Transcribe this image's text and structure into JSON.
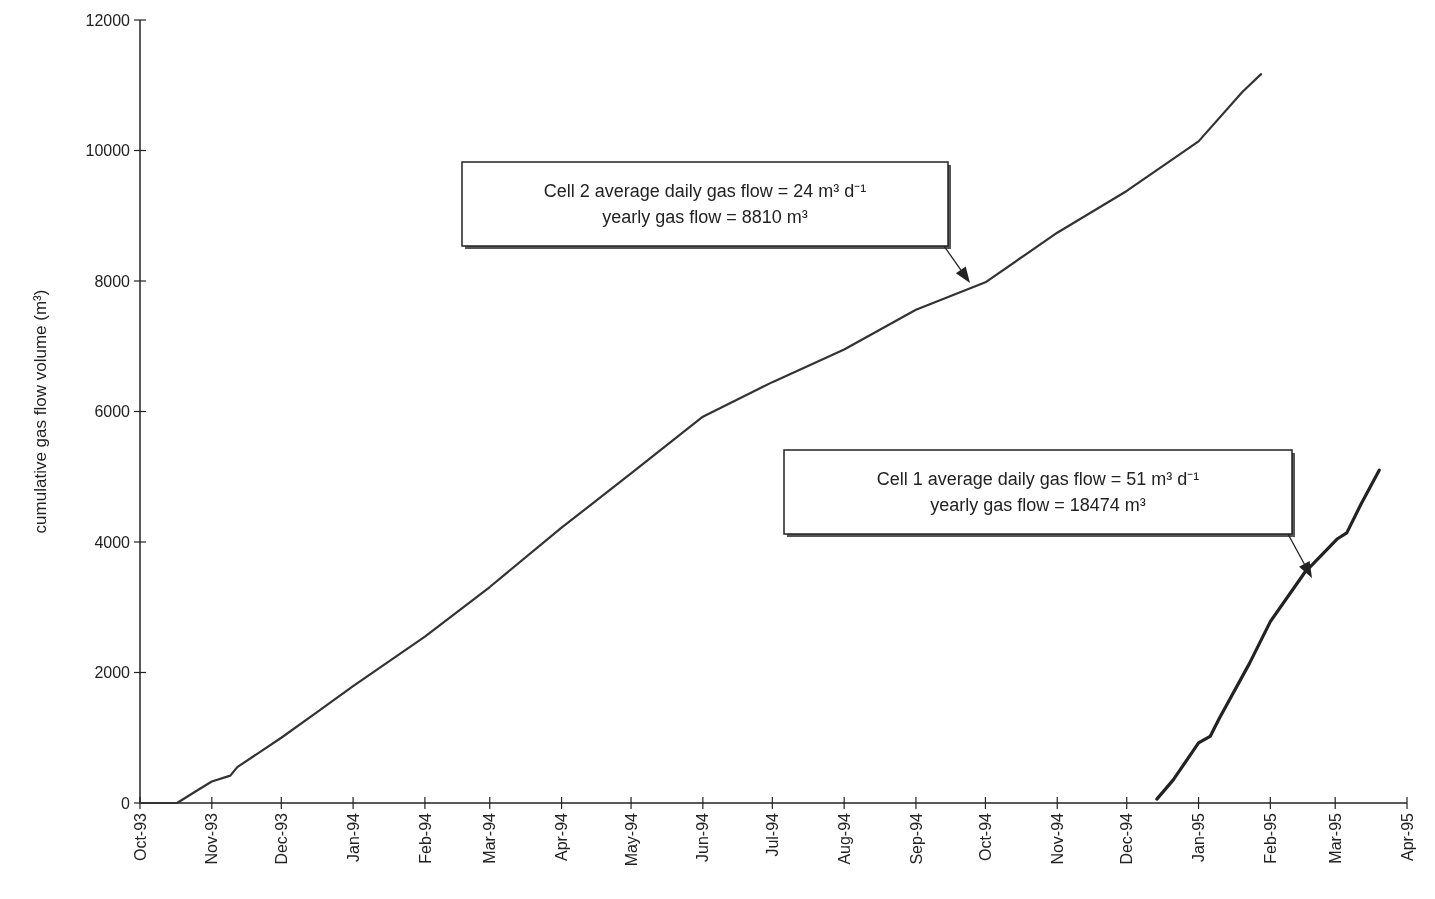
{
  "chart_data": {
    "type": "line",
    "ylabel": "cumulative gas flow volume (m³)",
    "xlim": [
      "1993-10-01",
      "1995-04-01"
    ],
    "xticks": [
      {
        "value": "1993-10-01",
        "label": "Oct-93"
      },
      {
        "value": "1993-11-01",
        "label": "Nov-93"
      },
      {
        "value": "1993-12-01",
        "label": "Dec-93"
      },
      {
        "value": "1994-01-01",
        "label": "Jan-94"
      },
      {
        "value": "1994-02-01",
        "label": "Feb-94"
      },
      {
        "value": "1994-03-01",
        "label": "Mar-94"
      },
      {
        "value": "1994-04-01",
        "label": "Apr-94"
      },
      {
        "value": "1994-05-01",
        "label": "May-94"
      },
      {
        "value": "1994-06-01",
        "label": "Jun-94"
      },
      {
        "value": "1994-07-01",
        "label": "Jul-94"
      },
      {
        "value": "1994-08-01",
        "label": "Aug-94"
      },
      {
        "value": "1994-09-01",
        "label": "Sep-94"
      },
      {
        "value": "1994-10-01",
        "label": "Oct-94"
      },
      {
        "value": "1994-11-01",
        "label": "Nov-94"
      },
      {
        "value": "1994-12-01",
        "label": "Dec-94"
      },
      {
        "value": "1995-01-01",
        "label": "Jan-95"
      },
      {
        "value": "1995-02-01",
        "label": "Feb-95"
      },
      {
        "value": "1995-03-01",
        "label": "Mar-95"
      },
      {
        "value": "1995-04-01",
        "label": "Apr-95"
      }
    ],
    "ylim": [
      0,
      12000
    ],
    "yticks": [
      0,
      2000,
      4000,
      6000,
      8000,
      10000,
      12000
    ],
    "grid": false,
    "marker": "none",
    "line_style": "solid",
    "series": [
      {
        "color": "#333333",
        "x": [
          "1993-10-01",
          "1993-10-17",
          "1993-10-26",
          "1993-11-01",
          "1993-11-09",
          "1993-11-12",
          "1993-12-01",
          "1993-12-16",
          "1994-01-01",
          "1994-02-01",
          "1994-03-01",
          "1994-04-01",
          "1994-05-01",
          "1994-06-01",
          "1994-07-01",
          "1994-08-01",
          "1994-09-01",
          "1994-10-01",
          "1994-11-01",
          "1994-12-01",
          "1995-01-01",
          "1995-01-20",
          "1995-01-28"
        ],
        "values": [
          0,
          0,
          200,
          330,
          420,
          550,
          1000,
          1380,
          1790,
          2550,
          3310,
          4220,
          5050,
          5920,
          6450,
          6950,
          7560,
          7980,
          8740,
          9380,
          10140,
          10900,
          11170
        ]
      },
      {
        "color": "#222222",
        "x": [
          "1994-12-14",
          "1994-12-21",
          "1995-01-01",
          "1995-01-06",
          "1995-01-10",
          "1995-01-23",
          "1995-02-01",
          "1995-02-16",
          "1995-03-02",
          "1995-03-06",
          "1995-03-12",
          "1995-03-20"
        ],
        "values": [
          60,
          350,
          920,
          1020,
          1300,
          2140,
          2780,
          3540,
          4050,
          4140,
          4570,
          5100
        ]
      }
    ],
    "annotations": [
      "Cell 2 average daily gas flow = 24 m³ d⁻¹\nyearly gas flow = 8810 m³",
      "Cell 1 average daily gas flow = 51  m³ d⁻¹\nyearly gas flow = 18474 m³"
    ]
  }
}
